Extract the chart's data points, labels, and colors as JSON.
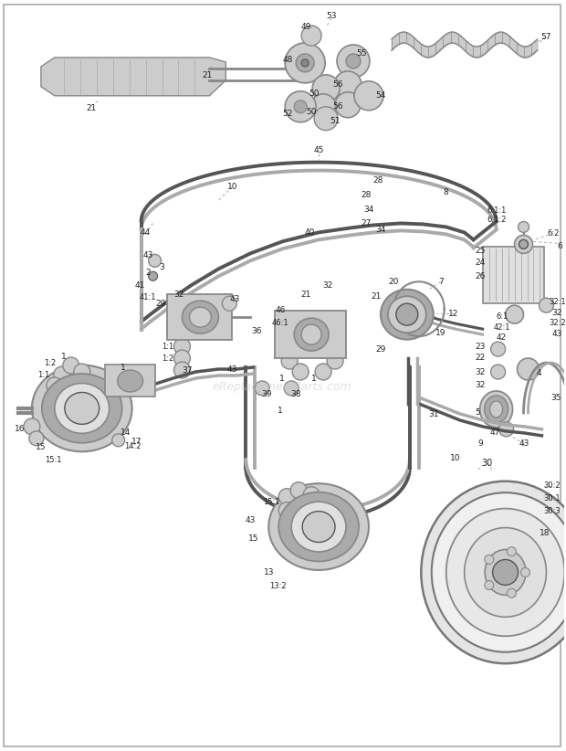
{
  "bg_color": "#ffffff",
  "watermark": "eReplacementParts.com",
  "watermark_color": "#c8c8c8",
  "watermark_alpha": 0.55,
  "fig_width": 6.2,
  "fig_height": 8.22,
  "dpi": 100,
  "gray1": "#555555",
  "gray2": "#888888",
  "gray3": "#aaaaaa",
  "gray4": "#cccccc",
  "gray5": "#e0e0e0",
  "line_color": "#555555"
}
